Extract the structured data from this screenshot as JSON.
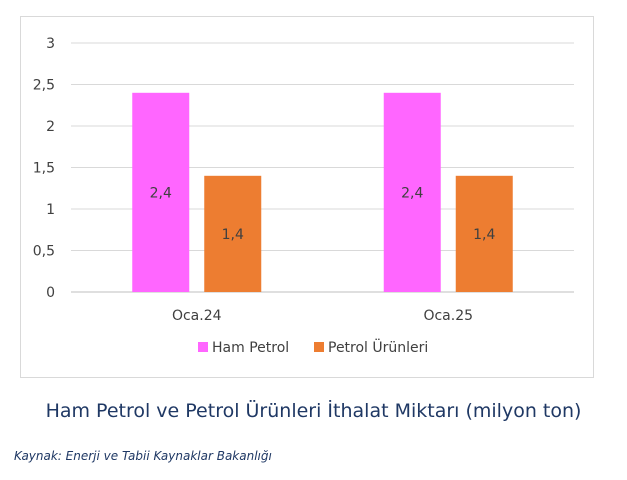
{
  "chart_data": {
    "type": "bar",
    "categories": [
      "Oca.24",
      "Oca.25"
    ],
    "series": [
      {
        "name": "Ham Petrol",
        "values": [
          2.4,
          2.4
        ],
        "labels": [
          "2,4",
          "2,4"
        ],
        "color": "#ff66ff"
      },
      {
        "name": "Petrol Ürünleri",
        "values": [
          1.4,
          1.4
        ],
        "labels": [
          "1,4",
          "1,4"
        ],
        "color": "#ed7d31"
      }
    ],
    "y_ticks": [
      {
        "value": 0,
        "label": "0"
      },
      {
        "value": 0.5,
        "label": "0,5"
      },
      {
        "value": 1,
        "label": "1"
      },
      {
        "value": 1.5,
        "label": "1,5"
      },
      {
        "value": 2,
        "label": "2"
      },
      {
        "value": 2.5,
        "label": "2,5"
      },
      {
        "value": 3,
        "label": "3"
      }
    ],
    "ylim": [
      0,
      3
    ],
    "grid": true,
    "legend_position": "bottom",
    "xlabel": "",
    "ylabel": ""
  },
  "caption": "Ham Petrol ve Petrol Ürünleri İthalat Miktarı (milyon ton)",
  "source": "Kaynak: Enerji ve Tabii Kaynaklar Bakanlığı"
}
